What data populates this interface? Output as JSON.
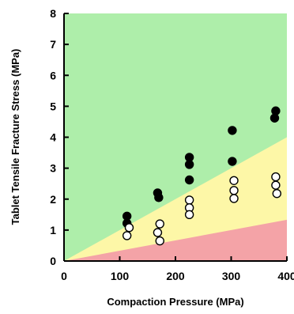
{
  "chart_data": {
    "type": "scatter",
    "title": "",
    "xlabel": "Compaction Pressure (MPa)",
    "ylabel": "Tablet Tensile Fracture Stress (MPa)",
    "xlim": [
      0,
      400
    ],
    "ylim": [
      0,
      8
    ],
    "x_ticks": [
      "0",
      "100",
      "200",
      "300",
      "400"
    ],
    "y_ticks": [
      "0",
      "1",
      "2",
      "3",
      "4",
      "5",
      "6",
      "7",
      "8"
    ],
    "grid": false,
    "legend": "none",
    "regions": [
      {
        "color": "#f4a3a7",
        "boundary_slope": 0.00333
      },
      {
        "color": "#fdf7a7",
        "boundary_slope": 0.01
      },
      {
        "color": "#aeeeaa"
      }
    ],
    "series": [
      {
        "marker": "filled-circle",
        "color": "#000000",
        "points": [
          [
            113,
            1.45
          ],
          [
            113,
            1.22
          ],
          [
            168,
            2.2
          ],
          [
            170,
            2.05
          ],
          [
            225,
            3.35
          ],
          [
            225,
            3.12
          ],
          [
            225,
            2.62
          ],
          [
            302,
            4.22
          ],
          [
            302,
            3.22
          ],
          [
            380,
            4.85
          ],
          [
            378,
            4.62
          ]
        ]
      },
      {
        "marker": "open-circle",
        "color": "#000000",
        "points": [
          [
            117,
            1.08
          ],
          [
            113,
            0.82
          ],
          [
            172,
            1.2
          ],
          [
            168,
            0.92
          ],
          [
            172,
            0.65
          ],
          [
            225,
            1.97
          ],
          [
            225,
            1.72
          ],
          [
            225,
            1.5
          ],
          [
            305,
            2.6
          ],
          [
            305,
            2.28
          ],
          [
            305,
            2.02
          ],
          [
            380,
            2.72
          ],
          [
            380,
            2.45
          ],
          [
            382,
            2.18
          ]
        ]
      }
    ]
  }
}
